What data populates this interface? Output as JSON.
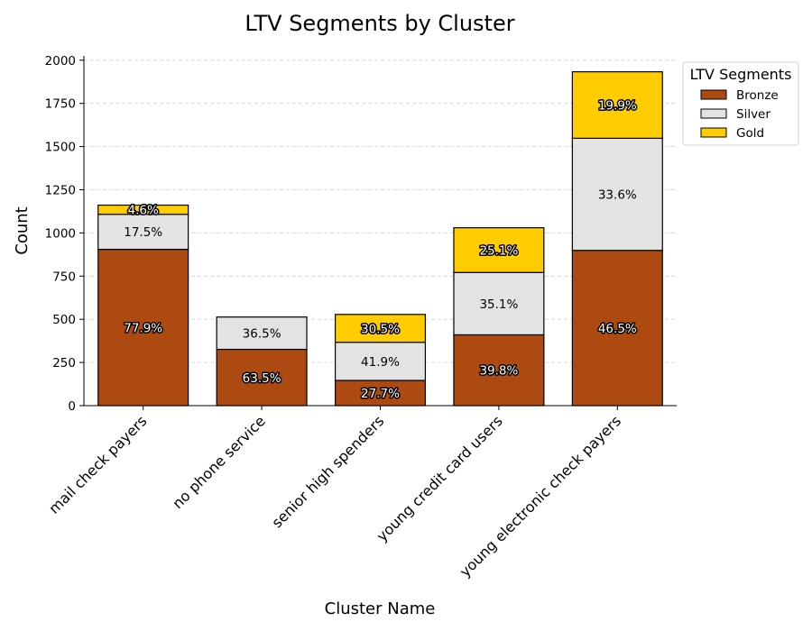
{
  "chart_data": {
    "type": "bar",
    "stacked": true,
    "title": "LTV Segments by Cluster",
    "xlabel": "Cluster Name",
    "ylabel": "Count",
    "ylim": [
      0,
      2025
    ],
    "yticks": [
      "0",
      "250",
      "500",
      "750",
      "1000",
      "1250",
      "1500",
      "1750",
      "2000"
    ],
    "grid": "y-dashed",
    "legend": {
      "title": "LTV Segments",
      "placement": "outside-top-right"
    },
    "categories": [
      "mail check payers",
      "no phone service",
      "senior high spenders",
      "young credit card users",
      "young electronic check payers"
    ],
    "series": [
      {
        "name": "Bronze",
        "color": "#AD4A12",
        "values": [
          905,
          326,
          146,
          410,
          899
        ],
        "labels": [
          "77.9%",
          "63.5%",
          "27.7%",
          "39.8%",
          "46.5%"
        ]
      },
      {
        "name": "Silver",
        "color": "#E3E3E3",
        "values": [
          203,
          187,
          221,
          361,
          649
        ],
        "labels": [
          "17.5%",
          "36.5%",
          "41.9%",
          "35.1%",
          "33.6%"
        ]
      },
      {
        "name": "Gold",
        "color": "#FFCC00",
        "values": [
          53,
          0,
          161,
          259,
          385
        ],
        "labels": [
          "4.6%",
          "",
          "30.5%",
          "25.1%",
          "19.9%"
        ]
      }
    ]
  }
}
